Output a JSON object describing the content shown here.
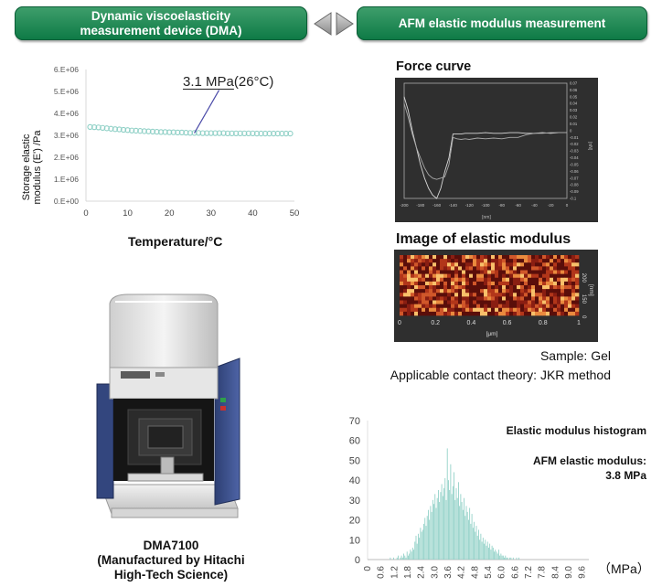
{
  "banners": {
    "left": [
      "Dynamic viscoelasticity",
      "measurement device (DMA)"
    ],
    "right": "AFM elastic modulus measurement"
  },
  "dma": {
    "ylabel": "Storage elastic modulus (E') /Pa",
    "ylabel_lines": [
      "Storage elastic",
      "modulus (E') /Pa"
    ],
    "xlabel": "Temperature/°C",
    "annotation_value": "3.1 MPa",
    "annotation_temp": "(26°C)",
    "device_caption": [
      "DMA7100",
      "(Manufactured by Hitachi",
      "High-Tech Science)"
    ]
  },
  "afm": {
    "force_curve_title": "Force curve",
    "elastic_image_title": "Image of elastic modulus",
    "elastic_image_x_unit": "[μm]",
    "elastic_image_y_unit": "[nm]",
    "sample": "Sample: Gel",
    "contact_theory": "Applicable contact theory: JKR method",
    "force_curve_x_unit": "[nm]",
    "force_curve_y_unit": "[nN]"
  },
  "histogram": {
    "title": "Elastic modulus histogram",
    "modulus_label": "AFM elastic modulus:",
    "modulus_value": "3.8 MPa",
    "unit": "（MPa）"
  },
  "chart_data": [
    {
      "type": "scatter",
      "name": "dma",
      "xlabel": "Temperature/°C",
      "ylabel": "Storage elastic modulus (E') /Pa",
      "xlim": [
        0,
        50
      ],
      "ylim": [
        0,
        6000000
      ],
      "x_ticks": [
        "0",
        "10",
        "20",
        "30",
        "40",
        "50"
      ],
      "y_ticks": [
        "0.E+00",
        "1.E+06",
        "2.E+06",
        "3.E+06",
        "4.E+06",
        "5.E+06",
        "6.E+06"
      ],
      "grid": false,
      "marker_color": "#8fd0c6",
      "x": [
        1,
        2,
        3,
        4,
        5,
        6,
        7,
        8,
        9,
        10,
        11,
        12,
        13,
        14,
        15,
        16,
        17,
        18,
        19,
        20,
        21,
        22,
        23,
        24,
        25,
        26,
        27,
        28,
        29,
        30,
        31,
        32,
        33,
        34,
        35,
        36,
        37,
        38,
        39,
        40,
        41,
        42,
        43,
        44,
        45,
        46,
        47,
        48,
        49
      ],
      "y": [
        3380000,
        3370000,
        3360000,
        3340000,
        3320000,
        3300000,
        3280000,
        3270000,
        3250000,
        3240000,
        3220000,
        3210000,
        3200000,
        3190000,
        3180000,
        3170000,
        3160000,
        3150000,
        3150000,
        3140000,
        3140000,
        3130000,
        3130000,
        3120000,
        3110000,
        3110000,
        3110000,
        3100000,
        3100000,
        3100000,
        3100000,
        3100000,
        3100000,
        3090000,
        3090000,
        3090000,
        3090000,
        3090000,
        3090000,
        3090000,
        3080000,
        3080000,
        3080000,
        3080000,
        3080000,
        3080000,
        3080000,
        3080000,
        3080000
      ],
      "annotation": {
        "text": "3.1 MPa(26°C)",
        "x": 26,
        "y": 3100000
      }
    },
    {
      "type": "bar",
      "name": "histogram",
      "title": "Elastic modulus histogram",
      "ylim": [
        0,
        70
      ],
      "y_ticks": [
        "0",
        "10",
        "20",
        "30",
        "40",
        "50",
        "60",
        "70"
      ],
      "x_ticks": [
        "0",
        "0.6",
        "1.2",
        "1.8",
        "2.4",
        "3.0",
        "3.6",
        "4.2",
        "4.8",
        "5.4",
        "6.0",
        "6.6",
        "7.2",
        "7.8",
        "8.4",
        "9.0",
        "9.6"
      ],
      "xlim": [
        0,
        9.9
      ],
      "bar_color": "#8fd0c6",
      "bin_width": 0.05,
      "bin_start": 1.0,
      "values": [
        1,
        0,
        0,
        1,
        0,
        0,
        1,
        2,
        0,
        1,
        2,
        1,
        3,
        2,
        1,
        4,
        2,
        3,
        5,
        4,
        6,
        5,
        9,
        12,
        8,
        13,
        11,
        16,
        14,
        15,
        18,
        21,
        17,
        22,
        25,
        20,
        27,
        24,
        30,
        28,
        33,
        26,
        31,
        35,
        29,
        34,
        38,
        32,
        36,
        41,
        30,
        56,
        40,
        35,
        48,
        33,
        37,
        44,
        30,
        36,
        31,
        39,
        27,
        33,
        29,
        25,
        31,
        22,
        27,
        24,
        20,
        26,
        18,
        23,
        16,
        19,
        14,
        17,
        12,
        15,
        10,
        13,
        9,
        11,
        8,
        10,
        7,
        9,
        6,
        8,
        5,
        7,
        6,
        4,
        5,
        4,
        3,
        5,
        2,
        3,
        2,
        2,
        1,
        2,
        1,
        1,
        0,
        1,
        1,
        0,
        1,
        0,
        0,
        1,
        0,
        1
      ]
    },
    {
      "type": "line",
      "name": "force-curve",
      "title": "Force curve",
      "x_ticks": [
        "-200",
        "-180",
        "-160",
        "-140",
        "-120",
        "-100",
        "-80",
        "-60",
        "-40",
        "-20",
        "0"
      ],
      "y_ticks": [
        "0.07",
        "0.06",
        "0.05",
        "0.04",
        "0.03",
        "0.02",
        "0.01",
        "0",
        "-0.01",
        "-0.02",
        "-0.03",
        "-0.04",
        "-0.05",
        "-0.06",
        "-0.07",
        "-0.08",
        "-0.09",
        "-0.1"
      ],
      "xlim": [
        -200,
        0
      ],
      "ylim": [
        -0.1,
        0.07
      ],
      "series": [
        {
          "x": [
            -200,
            -195,
            -190,
            -185,
            -180,
            -175,
            -170,
            -165,
            -160,
            -155,
            -150,
            -145,
            -140,
            -135,
            -130,
            -125,
            -120,
            -110,
            -100,
            -90,
            -80,
            -70,
            -60,
            -50,
            -40,
            -30,
            -20,
            -10,
            0
          ],
          "y": [
            0.05,
            0.03,
            0.0,
            -0.025,
            -0.05,
            -0.07,
            -0.085,
            -0.095,
            -0.1,
            -0.085,
            -0.06,
            -0.04,
            -0.005,
            -0.005,
            -0.005,
            -0.004,
            -0.004,
            -0.004,
            -0.003,
            -0.004,
            -0.004,
            -0.003,
            -0.003,
            -0.004,
            -0.004,
            -0.003,
            -0.004,
            -0.003,
            -0.003
          ]
        },
        {
          "x": [
            -200,
            -195,
            -190,
            -185,
            -180,
            -175,
            -170,
            -165,
            -160,
            -155,
            -150,
            -145,
            -140,
            -135,
            -130,
            -125,
            -120,
            -110,
            -100,
            -90,
            -80,
            -70,
            -60,
            -50,
            -40,
            -30,
            -20,
            -10,
            0
          ],
          "y": [
            0.04,
            0.02,
            -0.005,
            -0.025,
            -0.04,
            -0.055,
            -0.065,
            -0.07,
            -0.072,
            -0.07,
            -0.068,
            -0.05,
            -0.01,
            -0.012,
            -0.013,
            -0.012,
            -0.013,
            -0.011,
            -0.012,
            -0.011,
            -0.012,
            -0.01,
            -0.01,
            -0.006,
            -0.004,
            -0.004,
            -0.003,
            -0.003,
            -0.003
          ]
        }
      ]
    },
    {
      "type": "heatmap",
      "name": "elastic-image",
      "title": "Image of elastic modulus",
      "x_ticks": [
        "0",
        "0.2",
        "0.4",
        "0.6",
        "0.8",
        "1"
      ],
      "y_ticks": [
        "0",
        "150",
        "200"
      ],
      "colors": [
        "#5a0e0a",
        "#8a1e12",
        "#b2361a",
        "#d0572a",
        "#ea8a3e",
        "#f8c06a"
      ]
    }
  ]
}
